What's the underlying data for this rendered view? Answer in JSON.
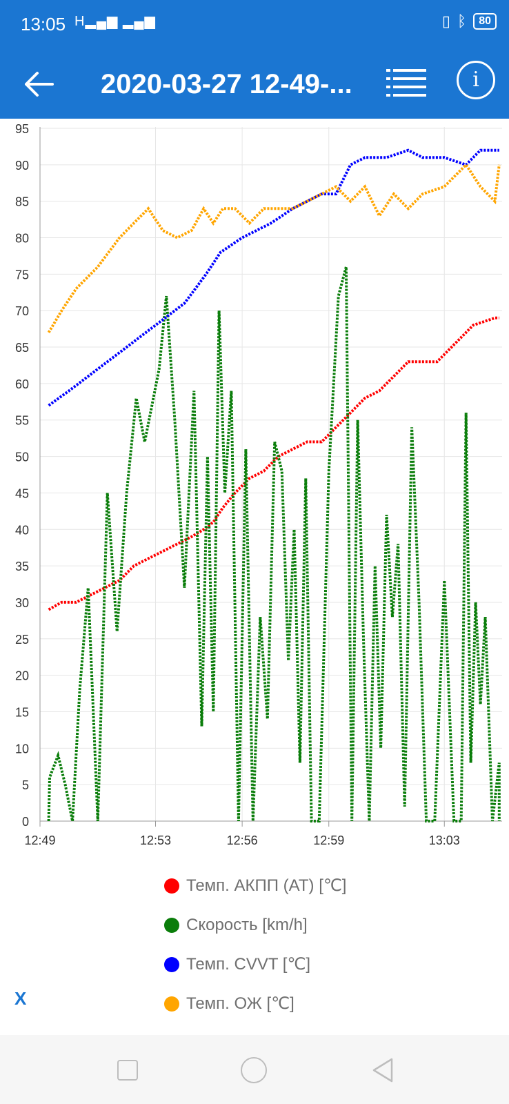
{
  "status_bar": {
    "time": "13:05",
    "network_label": "H",
    "battery": "80",
    "icons": [
      "signal-icon",
      "vibrate-icon",
      "bluetooth-icon",
      "battery-icon"
    ]
  },
  "app_bar": {
    "title": "2020-03-27 12-49-...",
    "icons": [
      "back-arrow-icon",
      "list-icon",
      "info-icon"
    ],
    "info_glyph": "i"
  },
  "chart_data": {
    "type": "line",
    "x_label_format": "HH:MM",
    "xlim": [
      "12:49",
      "13:05"
    ],
    "ylim": [
      0,
      95
    ],
    "y_ticks": [
      0,
      5,
      10,
      15,
      20,
      25,
      30,
      35,
      40,
      45,
      50,
      55,
      60,
      65,
      70,
      75,
      80,
      85,
      90,
      95
    ],
    "x_ticks": [
      "12:49",
      "12:53",
      "12:56",
      "12:59",
      "13:03"
    ],
    "grid": true,
    "legend_position": "bottom",
    "series": [
      {
        "name": "Темп. АКПП (AT) [℃]",
        "color": "#ff0000",
        "points": [
          [
            "12:49",
            29
          ],
          [
            "12:49",
            29
          ],
          [
            "12:50",
            30
          ],
          [
            "12:50",
            30
          ],
          [
            "12:51",
            31
          ],
          [
            "12:51",
            32
          ],
          [
            "12:52",
            33
          ],
          [
            "12:52",
            35
          ],
          [
            "12:53",
            36
          ],
          [
            "12:53",
            37
          ],
          [
            "12:54",
            38
          ],
          [
            "12:54",
            39
          ],
          [
            "12:55",
            40
          ],
          [
            "12:55",
            41
          ],
          [
            "12:55",
            43
          ],
          [
            "12:56",
            45
          ],
          [
            "12:56",
            47
          ],
          [
            "12:57",
            48
          ],
          [
            "12:57",
            50
          ],
          [
            "12:58",
            51
          ],
          [
            "12:58",
            52
          ],
          [
            "12:59",
            52
          ],
          [
            "12:59",
            54
          ],
          [
            "13:00",
            56
          ],
          [
            "13:00",
            58
          ],
          [
            "13:01",
            59
          ],
          [
            "13:01",
            61
          ],
          [
            "13:02",
            63
          ],
          [
            "13:02",
            63
          ],
          [
            "13:03",
            63
          ],
          [
            "13:03",
            65
          ],
          [
            "13:04",
            68
          ],
          [
            "13:05",
            69
          ],
          [
            "13:05",
            69
          ]
        ]
      },
      {
        "name": "Скорость [km/h]",
        "color": "#0a7d0a",
        "points": [
          [
            "12:49",
            0
          ],
          [
            "12:49",
            0
          ],
          [
            "12:49",
            6
          ],
          [
            "12:50",
            9
          ],
          [
            "12:50",
            5
          ],
          [
            "12:50",
            0
          ],
          [
            "12:50",
            18
          ],
          [
            "12:51",
            32
          ],
          [
            "12:51",
            0
          ],
          [
            "12:51",
            45
          ],
          [
            "12:52",
            26
          ],
          [
            "12:52",
            45
          ],
          [
            "12:52",
            58
          ],
          [
            "12:53",
            52
          ],
          [
            "12:53",
            57
          ],
          [
            "12:53",
            62
          ],
          [
            "12:53",
            72
          ],
          [
            "12:54",
            55
          ],
          [
            "12:54",
            32
          ],
          [
            "12:54",
            59
          ],
          [
            "12:55",
            13
          ],
          [
            "12:55",
            50
          ],
          [
            "12:55",
            15
          ],
          [
            "12:55",
            70
          ],
          [
            "12:55",
            45
          ],
          [
            "12:56",
            59
          ],
          [
            "12:56",
            0
          ],
          [
            "12:56",
            51
          ],
          [
            "12:56",
            0
          ],
          [
            "12:57",
            28
          ],
          [
            "12:57",
            14
          ],
          [
            "12:57",
            52
          ],
          [
            "12:57",
            48
          ],
          [
            "12:58",
            22
          ],
          [
            "12:58",
            40
          ],
          [
            "12:58",
            8
          ],
          [
            "12:58",
            47
          ],
          [
            "12:58",
            0
          ],
          [
            "12:59",
            0
          ],
          [
            "12:59",
            48
          ],
          [
            "12:59",
            72
          ],
          [
            "13:00",
            76
          ],
          [
            "13:00",
            0
          ],
          [
            "13:00",
            55
          ],
          [
            "13:00",
            25
          ],
          [
            "13:00",
            0
          ],
          [
            "13:01",
            35
          ],
          [
            "13:01",
            10
          ],
          [
            "13:01",
            42
          ],
          [
            "13:01",
            28
          ],
          [
            "13:01",
            38
          ],
          [
            "13:02",
            2
          ],
          [
            "13:02",
            54
          ],
          [
            "13:02",
            30
          ],
          [
            "13:02",
            0
          ],
          [
            "13:03",
            0
          ],
          [
            "13:03",
            33
          ],
          [
            "13:03",
            0
          ],
          [
            "13:04",
            0
          ],
          [
            "13:04",
            56
          ],
          [
            "13:04",
            8
          ],
          [
            "13:04",
            30
          ],
          [
            "13:04",
            16
          ],
          [
            "13:04",
            28
          ],
          [
            "13:05",
            0
          ],
          [
            "13:05",
            8
          ],
          [
            "13:05",
            0
          ]
        ]
      },
      {
        "name": "Темп. CVVT [℃]",
        "color": "#0000ff",
        "points": [
          [
            "12:49",
            57
          ],
          [
            "12:50",
            59
          ],
          [
            "12:51",
            62
          ],
          [
            "12:52",
            65
          ],
          [
            "12:53",
            68
          ],
          [
            "12:54",
            71
          ],
          [
            "12:55",
            75
          ],
          [
            "12:55",
            78
          ],
          [
            "12:56",
            80
          ],
          [
            "12:57",
            82
          ],
          [
            "12:58",
            84
          ],
          [
            "12:58",
            85
          ],
          [
            "12:59",
            86
          ],
          [
            "12:59",
            86
          ],
          [
            "13:00",
            90
          ],
          [
            "13:00",
            91
          ],
          [
            "13:01",
            91
          ],
          [
            "13:02",
            92
          ],
          [
            "13:02",
            91
          ],
          [
            "13:03",
            91
          ],
          [
            "13:04",
            90
          ],
          [
            "13:04",
            92
          ],
          [
            "13:05",
            92
          ]
        ]
      },
      {
        "name": "Темп. ОЖ [℃]",
        "color": "#ffa500",
        "points": [
          [
            "12:49",
            67
          ],
          [
            "12:50",
            70
          ],
          [
            "12:50",
            73
          ],
          [
            "12:51",
            76
          ],
          [
            "12:52",
            80
          ],
          [
            "12:52",
            82
          ],
          [
            "12:53",
            84
          ],
          [
            "12:53",
            81
          ],
          [
            "12:54",
            80
          ],
          [
            "12:54",
            81
          ],
          [
            "12:55",
            84
          ],
          [
            "12:55",
            82
          ],
          [
            "12:55",
            84
          ],
          [
            "12:56",
            84
          ],
          [
            "12:56",
            82
          ],
          [
            "12:57",
            84
          ],
          [
            "12:57",
            84
          ],
          [
            "12:58",
            84
          ],
          [
            "12:58",
            85
          ],
          [
            "12:59",
            86
          ],
          [
            "12:59",
            87
          ],
          [
            "13:00",
            85
          ],
          [
            "13:00",
            87
          ],
          [
            "13:01",
            83
          ],
          [
            "13:01",
            86
          ],
          [
            "13:02",
            84
          ],
          [
            "13:02",
            86
          ],
          [
            "13:03",
            87
          ],
          [
            "13:04",
            90
          ],
          [
            "13:04",
            87
          ],
          [
            "13:05",
            85
          ],
          [
            "13:05",
            90
          ]
        ]
      }
    ]
  },
  "legend": [
    {
      "label": "Темп. АКПП (AT) [℃]",
      "color": "#ff0000"
    },
    {
      "label": "Скорость [km/h]",
      "color": "#0a7d0a"
    },
    {
      "label": "Темп. CVVT [℃]",
      "color": "#0000ff"
    },
    {
      "label": "Темп. ОЖ [℃]",
      "color": "#ffa500"
    }
  ],
  "close_button_label": "X",
  "nav_bar": {
    "icons": [
      "recents-square-icon",
      "home-circle-icon",
      "back-triangle-icon"
    ]
  }
}
